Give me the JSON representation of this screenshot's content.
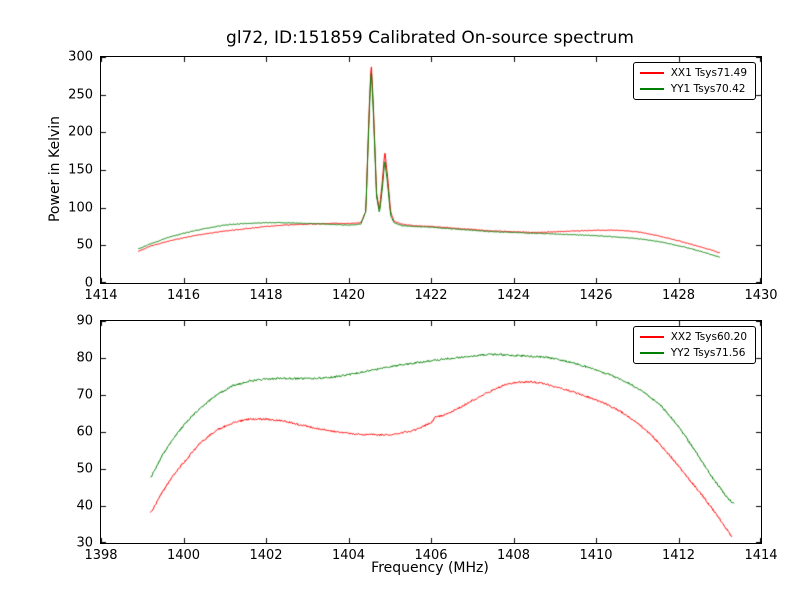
{
  "figure": {
    "background": "#ffffff"
  },
  "chart_data": [
    {
      "type": "line",
      "title": "gl72, ID:151859 Calibrated On-source spectrum",
      "xlabel": "",
      "ylabel": "Power in Kelvin",
      "xlim": [
        1414,
        1430
      ],
      "ylim": [
        0,
        300
      ],
      "xticks": [
        1414,
        1416,
        1418,
        1420,
        1422,
        1424,
        1426,
        1428,
        1430
      ],
      "yticks": [
        0,
        50,
        100,
        150,
        200,
        250,
        300
      ],
      "grid": false,
      "legend_position": "upper right",
      "series": [
        {
          "name": "XX1 Tsys71.49",
          "color": "#ff0000",
          "noise": 0.5,
          "points": [
            [
              1414.9,
              42
            ],
            [
              1415.2,
              49
            ],
            [
              1415.6,
              55
            ],
            [
              1416.0,
              60
            ],
            [
              1416.5,
              65
            ],
            [
              1417.0,
              69
            ],
            [
              1417.5,
              72
            ],
            [
              1418.0,
              75
            ],
            [
              1418.5,
              77
            ],
            [
              1419.0,
              78
            ],
            [
              1419.5,
              79
            ],
            [
              1420.0,
              79
            ],
            [
              1420.3,
              80
            ],
            [
              1420.42,
              95
            ],
            [
              1420.5,
              230
            ],
            [
              1420.55,
              293
            ],
            [
              1420.6,
              240
            ],
            [
              1420.68,
              120
            ],
            [
              1420.75,
              97
            ],
            [
              1420.82,
              135
            ],
            [
              1420.88,
              175
            ],
            [
              1420.95,
              140
            ],
            [
              1421.02,
              95
            ],
            [
              1421.1,
              82
            ],
            [
              1421.3,
              78
            ],
            [
              1421.6,
              76
            ],
            [
              1422.0,
              75
            ],
            [
              1422.5,
              73
            ],
            [
              1423.0,
              71
            ],
            [
              1423.5,
              69
            ],
            [
              1424.0,
              68
            ],
            [
              1424.5,
              67
            ],
            [
              1425.0,
              68
            ],
            [
              1425.5,
              69
            ],
            [
              1426.0,
              70
            ],
            [
              1426.5,
              70
            ],
            [
              1427.0,
              68
            ],
            [
              1427.4,
              64
            ],
            [
              1427.8,
              59
            ],
            [
              1428.2,
              53
            ],
            [
              1428.6,
              47
            ],
            [
              1429.0,
              40
            ]
          ]
        },
        {
          "name": "YY1 Tsys70.42",
          "color": "#008000",
          "noise": 0.5,
          "points": [
            [
              1414.9,
              45
            ],
            [
              1415.2,
              52
            ],
            [
              1415.6,
              60
            ],
            [
              1416.0,
              66
            ],
            [
              1416.5,
              72
            ],
            [
              1417.0,
              77
            ],
            [
              1417.5,
              79
            ],
            [
              1418.0,
              80
            ],
            [
              1418.5,
              80
            ],
            [
              1419.0,
              79
            ],
            [
              1419.5,
              78
            ],
            [
              1420.0,
              77
            ],
            [
              1420.3,
              78
            ],
            [
              1420.42,
              95
            ],
            [
              1420.5,
              220
            ],
            [
              1420.55,
              285
            ],
            [
              1420.6,
              230
            ],
            [
              1420.68,
              115
            ],
            [
              1420.75,
              93
            ],
            [
              1420.82,
              125
            ],
            [
              1420.88,
              163
            ],
            [
              1420.95,
              130
            ],
            [
              1421.02,
              90
            ],
            [
              1421.1,
              80
            ],
            [
              1421.3,
              76
            ],
            [
              1421.6,
              75
            ],
            [
              1422.0,
              74
            ],
            [
              1422.5,
              72
            ],
            [
              1423.0,
              70
            ],
            [
              1423.5,
              68
            ],
            [
              1424.0,
              67
            ],
            [
              1424.5,
              66
            ],
            [
              1425.0,
              65
            ],
            [
              1425.5,
              64
            ],
            [
              1426.0,
              63
            ],
            [
              1426.5,
              61
            ],
            [
              1427.0,
              59
            ],
            [
              1427.4,
              56
            ],
            [
              1427.8,
              52
            ],
            [
              1428.2,
              47
            ],
            [
              1428.6,
              41
            ],
            [
              1429.0,
              34
            ]
          ]
        }
      ]
    },
    {
      "type": "line",
      "title": "",
      "xlabel": "Frequency (MHz)",
      "ylabel": "",
      "xlim": [
        1398,
        1414
      ],
      "ylim": [
        30,
        90
      ],
      "xticks": [
        1398,
        1400,
        1402,
        1404,
        1406,
        1408,
        1410,
        1412,
        1414
      ],
      "yticks": [
        30,
        40,
        50,
        60,
        70,
        80,
        90
      ],
      "grid": false,
      "legend_position": "upper right",
      "series": [
        {
          "name": "XX2 Tsys60.20",
          "color": "#ff0000",
          "noise": 0.25,
          "points": [
            [
              1399.2,
              38
            ],
            [
              1399.5,
              44
            ],
            [
              1399.8,
              49
            ],
            [
              1400.1,
              53
            ],
            [
              1400.4,
              57
            ],
            [
              1400.8,
              60.5
            ],
            [
              1401.2,
              62.5
            ],
            [
              1401.6,
              63.5
            ],
            [
              1402.0,
              63.5
            ],
            [
              1402.4,
              63
            ],
            [
              1402.8,
              62
            ],
            [
              1403.2,
              61
            ],
            [
              1403.6,
              60.2
            ],
            [
              1404.0,
              59.7
            ],
            [
              1404.4,
              59.3
            ],
            [
              1404.8,
              59.2
            ],
            [
              1405.2,
              59.5
            ],
            [
              1405.6,
              60.5
            ],
            [
              1406.0,
              62.5
            ],
            [
              1406.1,
              64
            ],
            [
              1406.3,
              64.5
            ],
            [
              1406.6,
              66
            ],
            [
              1407.0,
              68.5
            ],
            [
              1407.4,
              70.8
            ],
            [
              1407.8,
              72.8
            ],
            [
              1408.1,
              73.5
            ],
            [
              1408.4,
              73.6
            ],
            [
              1408.7,
              73.2
            ],
            [
              1409.0,
              72.3
            ],
            [
              1409.4,
              71
            ],
            [
              1409.8,
              69.5
            ],
            [
              1410.2,
              67.8
            ],
            [
              1410.6,
              65.5
            ],
            [
              1411.0,
              62.5
            ],
            [
              1411.4,
              58.5
            ],
            [
              1411.8,
              53.5
            ],
            [
              1412.2,
              48
            ],
            [
              1412.6,
              42.5
            ],
            [
              1413.0,
              36.5
            ],
            [
              1413.3,
              31.5
            ]
          ]
        },
        {
          "name": "YY2 Tsys71.56",
          "color": "#008000",
          "noise": 0.25,
          "points": [
            [
              1399.2,
              47.5
            ],
            [
              1399.5,
              54
            ],
            [
              1399.8,
              59
            ],
            [
              1400.1,
              63
            ],
            [
              1400.4,
              66.5
            ],
            [
              1400.8,
              70
            ],
            [
              1401.2,
              72.5
            ],
            [
              1401.6,
              73.8
            ],
            [
              1402.0,
              74.3
            ],
            [
              1402.4,
              74.5
            ],
            [
              1402.8,
              74.4
            ],
            [
              1403.2,
              74.5
            ],
            [
              1403.6,
              74.8
            ],
            [
              1404.0,
              75.5
            ],
            [
              1404.4,
              76.3
            ],
            [
              1404.8,
              77.2
            ],
            [
              1405.2,
              78
            ],
            [
              1405.6,
              78.6
            ],
            [
              1406.0,
              79.3
            ],
            [
              1406.4,
              79.8
            ],
            [
              1406.8,
              80.3
            ],
            [
              1407.2,
              80.8
            ],
            [
              1407.6,
              81
            ],
            [
              1408.0,
              80.7
            ],
            [
              1408.4,
              80.5
            ],
            [
              1408.8,
              80.2
            ],
            [
              1409.2,
              79.3
            ],
            [
              1409.6,
              78.2
            ],
            [
              1410.0,
              76.8
            ],
            [
              1410.4,
              75.2
            ],
            [
              1410.8,
              73.2
            ],
            [
              1411.2,
              70.5
            ],
            [
              1411.6,
              66.8
            ],
            [
              1412.0,
              61.5
            ],
            [
              1412.4,
              55
            ],
            [
              1412.8,
              48
            ],
            [
              1413.2,
              42
            ],
            [
              1413.35,
              40.5
            ]
          ]
        }
      ]
    }
  ]
}
